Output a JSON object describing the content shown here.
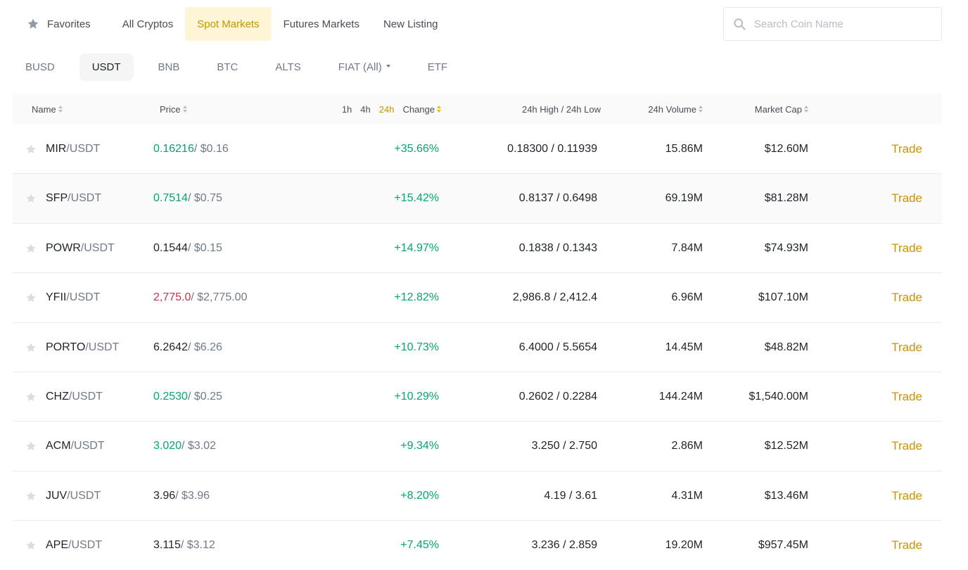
{
  "top_tabs": [
    {
      "label": "Favorites",
      "icon": "star-icon"
    },
    {
      "label": "All Cryptos"
    },
    {
      "label": "Spot Markets",
      "active": true
    },
    {
      "label": "Futures Markets"
    },
    {
      "label": "New Listing"
    }
  ],
  "search": {
    "placeholder": "Search Coin Name",
    "icon": "search-icon"
  },
  "quote_tabs": [
    {
      "label": "BUSD"
    },
    {
      "label": "USDT",
      "active": true
    },
    {
      "label": "BNB"
    },
    {
      "label": "BTC"
    },
    {
      "label": "ALTS"
    },
    {
      "label": "FIAT (All)",
      "dropdown": true
    },
    {
      "label": "ETF"
    }
  ],
  "table": {
    "headers": {
      "name": "Name",
      "price": "Price",
      "periods": [
        "1h",
        "4h",
        "24h"
      ],
      "active_period": "24h",
      "change": "Change",
      "high_low": "24h High / 24h Low",
      "volume": "24h Volume",
      "market_cap": "Market Cap"
    },
    "trade_label": "Trade",
    "colors": {
      "up": "#03a66d",
      "down": "#cf304a",
      "accent": "#c99400"
    },
    "rows": [
      {
        "base": "MIR",
        "quote": "/USDT",
        "price": "0.16216",
        "price_color": "green",
        "usd": " / $0.16",
        "change": "+35.66%",
        "high_low": "0.18300 / 0.11939",
        "volume": "15.86M",
        "market_cap": "$12.60M"
      },
      {
        "base": "SFP",
        "quote": "/USDT",
        "price": "0.7514",
        "price_color": "green",
        "usd": " / $0.75",
        "change": "+15.42%",
        "high_low": "0.8137 / 0.6498",
        "volume": "69.19M",
        "market_cap": "$81.28M"
      },
      {
        "base": "POWR",
        "quote": "/USDT",
        "price": "0.1544",
        "price_color": "black",
        "usd": " / $0.15",
        "change": "+14.97%",
        "high_low": "0.1838 / 0.1343",
        "volume": "7.84M",
        "market_cap": "$74.93M"
      },
      {
        "base": "YFII",
        "quote": "/USDT",
        "price": "2,775.0",
        "price_color": "red",
        "usd": " / $2,775.00",
        "change": "+12.82%",
        "high_low": "2,986.8 / 2,412.4",
        "volume": "6.96M",
        "market_cap": "$107.10M"
      },
      {
        "base": "PORTO",
        "quote": "/USDT",
        "price": "6.2642",
        "price_color": "black",
        "usd": " / $6.26",
        "change": "+10.73%",
        "high_low": "6.4000 / 5.5654",
        "volume": "14.45M",
        "market_cap": "$48.82M"
      },
      {
        "base": "CHZ",
        "quote": "/USDT",
        "price": "0.2530",
        "price_color": "green",
        "usd": " / $0.25",
        "change": "+10.29%",
        "high_low": "0.2602 / 0.2284",
        "volume": "144.24M",
        "market_cap": "$1,540.00M"
      },
      {
        "base": "ACM",
        "quote": "/USDT",
        "price": "3.020",
        "price_color": "green",
        "usd": " / $3.02",
        "change": "+9.34%",
        "high_low": "3.250 / 2.750",
        "volume": "2.86M",
        "market_cap": "$12.52M"
      },
      {
        "base": "JUV",
        "quote": "/USDT",
        "price": "3.96",
        "price_color": "black",
        "usd": " / $3.96",
        "change": "+8.20%",
        "high_low": "4.19 / 3.61",
        "volume": "4.31M",
        "market_cap": "$13.46M"
      },
      {
        "base": "APE",
        "quote": "/USDT",
        "price": "3.115",
        "price_color": "black",
        "usd": " / $3.12",
        "change": "+7.45%",
        "high_low": "3.236 / 2.859",
        "volume": "19.20M",
        "market_cap": "$957.45M"
      }
    ]
  }
}
